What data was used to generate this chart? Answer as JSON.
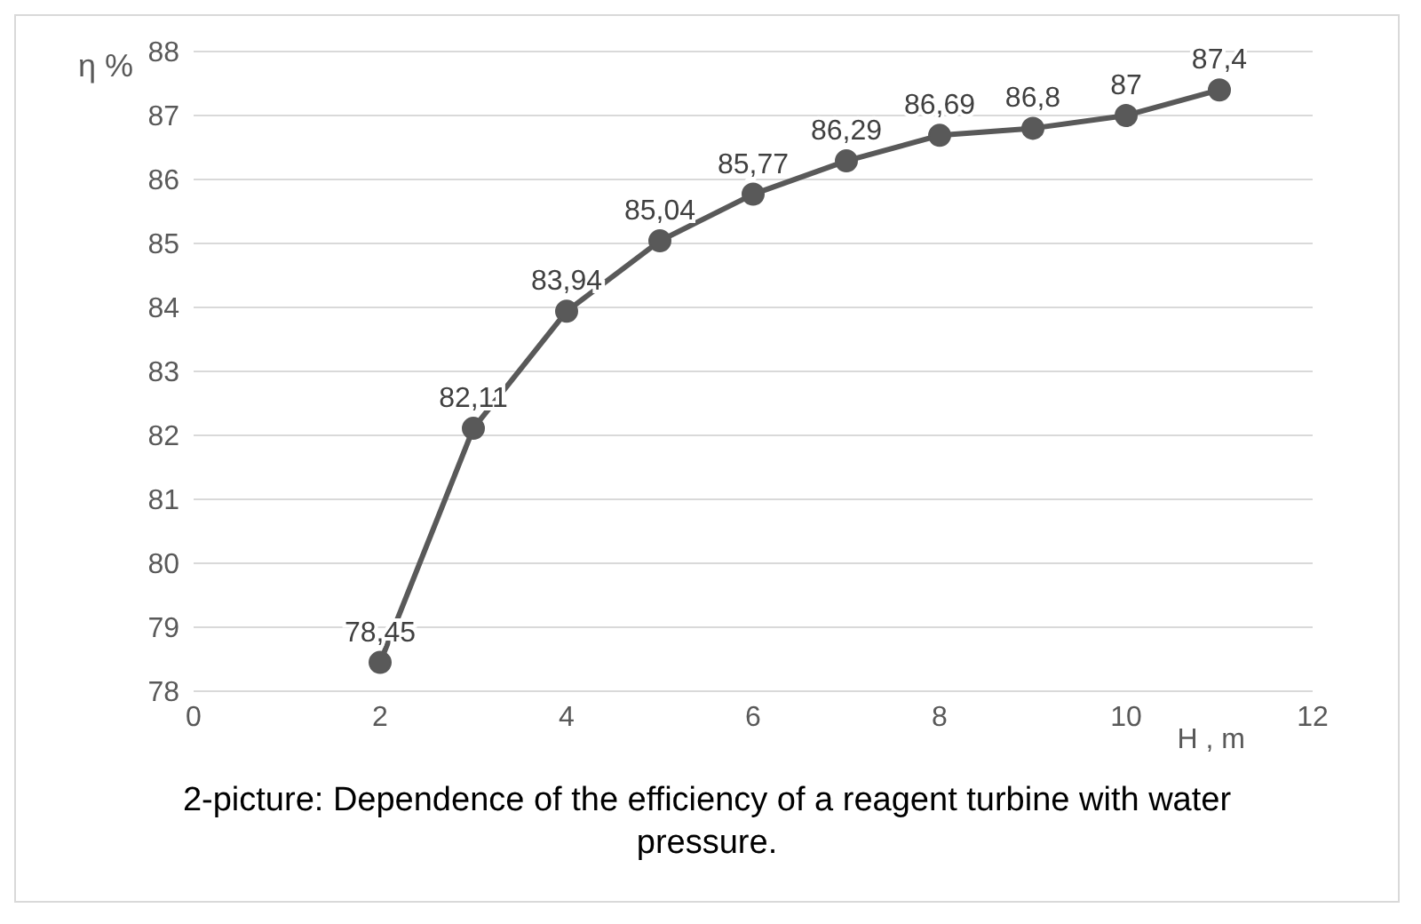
{
  "chart_data": {
    "type": "line",
    "title": "2-picture: Dependence of the efficiency of a reagent turbine with water pressure.",
    "xlabel": "H , m",
    "ylabel": "η %",
    "x": [
      2,
      3,
      4,
      5,
      6,
      7,
      8,
      9,
      10,
      11
    ],
    "series": [
      {
        "color": "#595959",
        "values": [
          78.45,
          82.11,
          83.94,
          85.04,
          85.77,
          86.29,
          86.69,
          86.8,
          87,
          87.4
        ],
        "value_labels": [
          "78,45",
          "82,11",
          "83,94",
          "85,04",
          "85,77",
          "86,29",
          "86,69",
          "86,8",
          "87",
          "87,4"
        ]
      }
    ],
    "xlim": [
      0,
      12
    ],
    "xticks": [
      0,
      2,
      4,
      6,
      8,
      10,
      12
    ],
    "ylim": [
      78,
      88
    ],
    "yticks": [
      78,
      79,
      80,
      81,
      82,
      83,
      84,
      85,
      86,
      87,
      88
    ],
    "grid": "y",
    "marker": "circle",
    "line_style": "solid",
    "legend": false
  }
}
